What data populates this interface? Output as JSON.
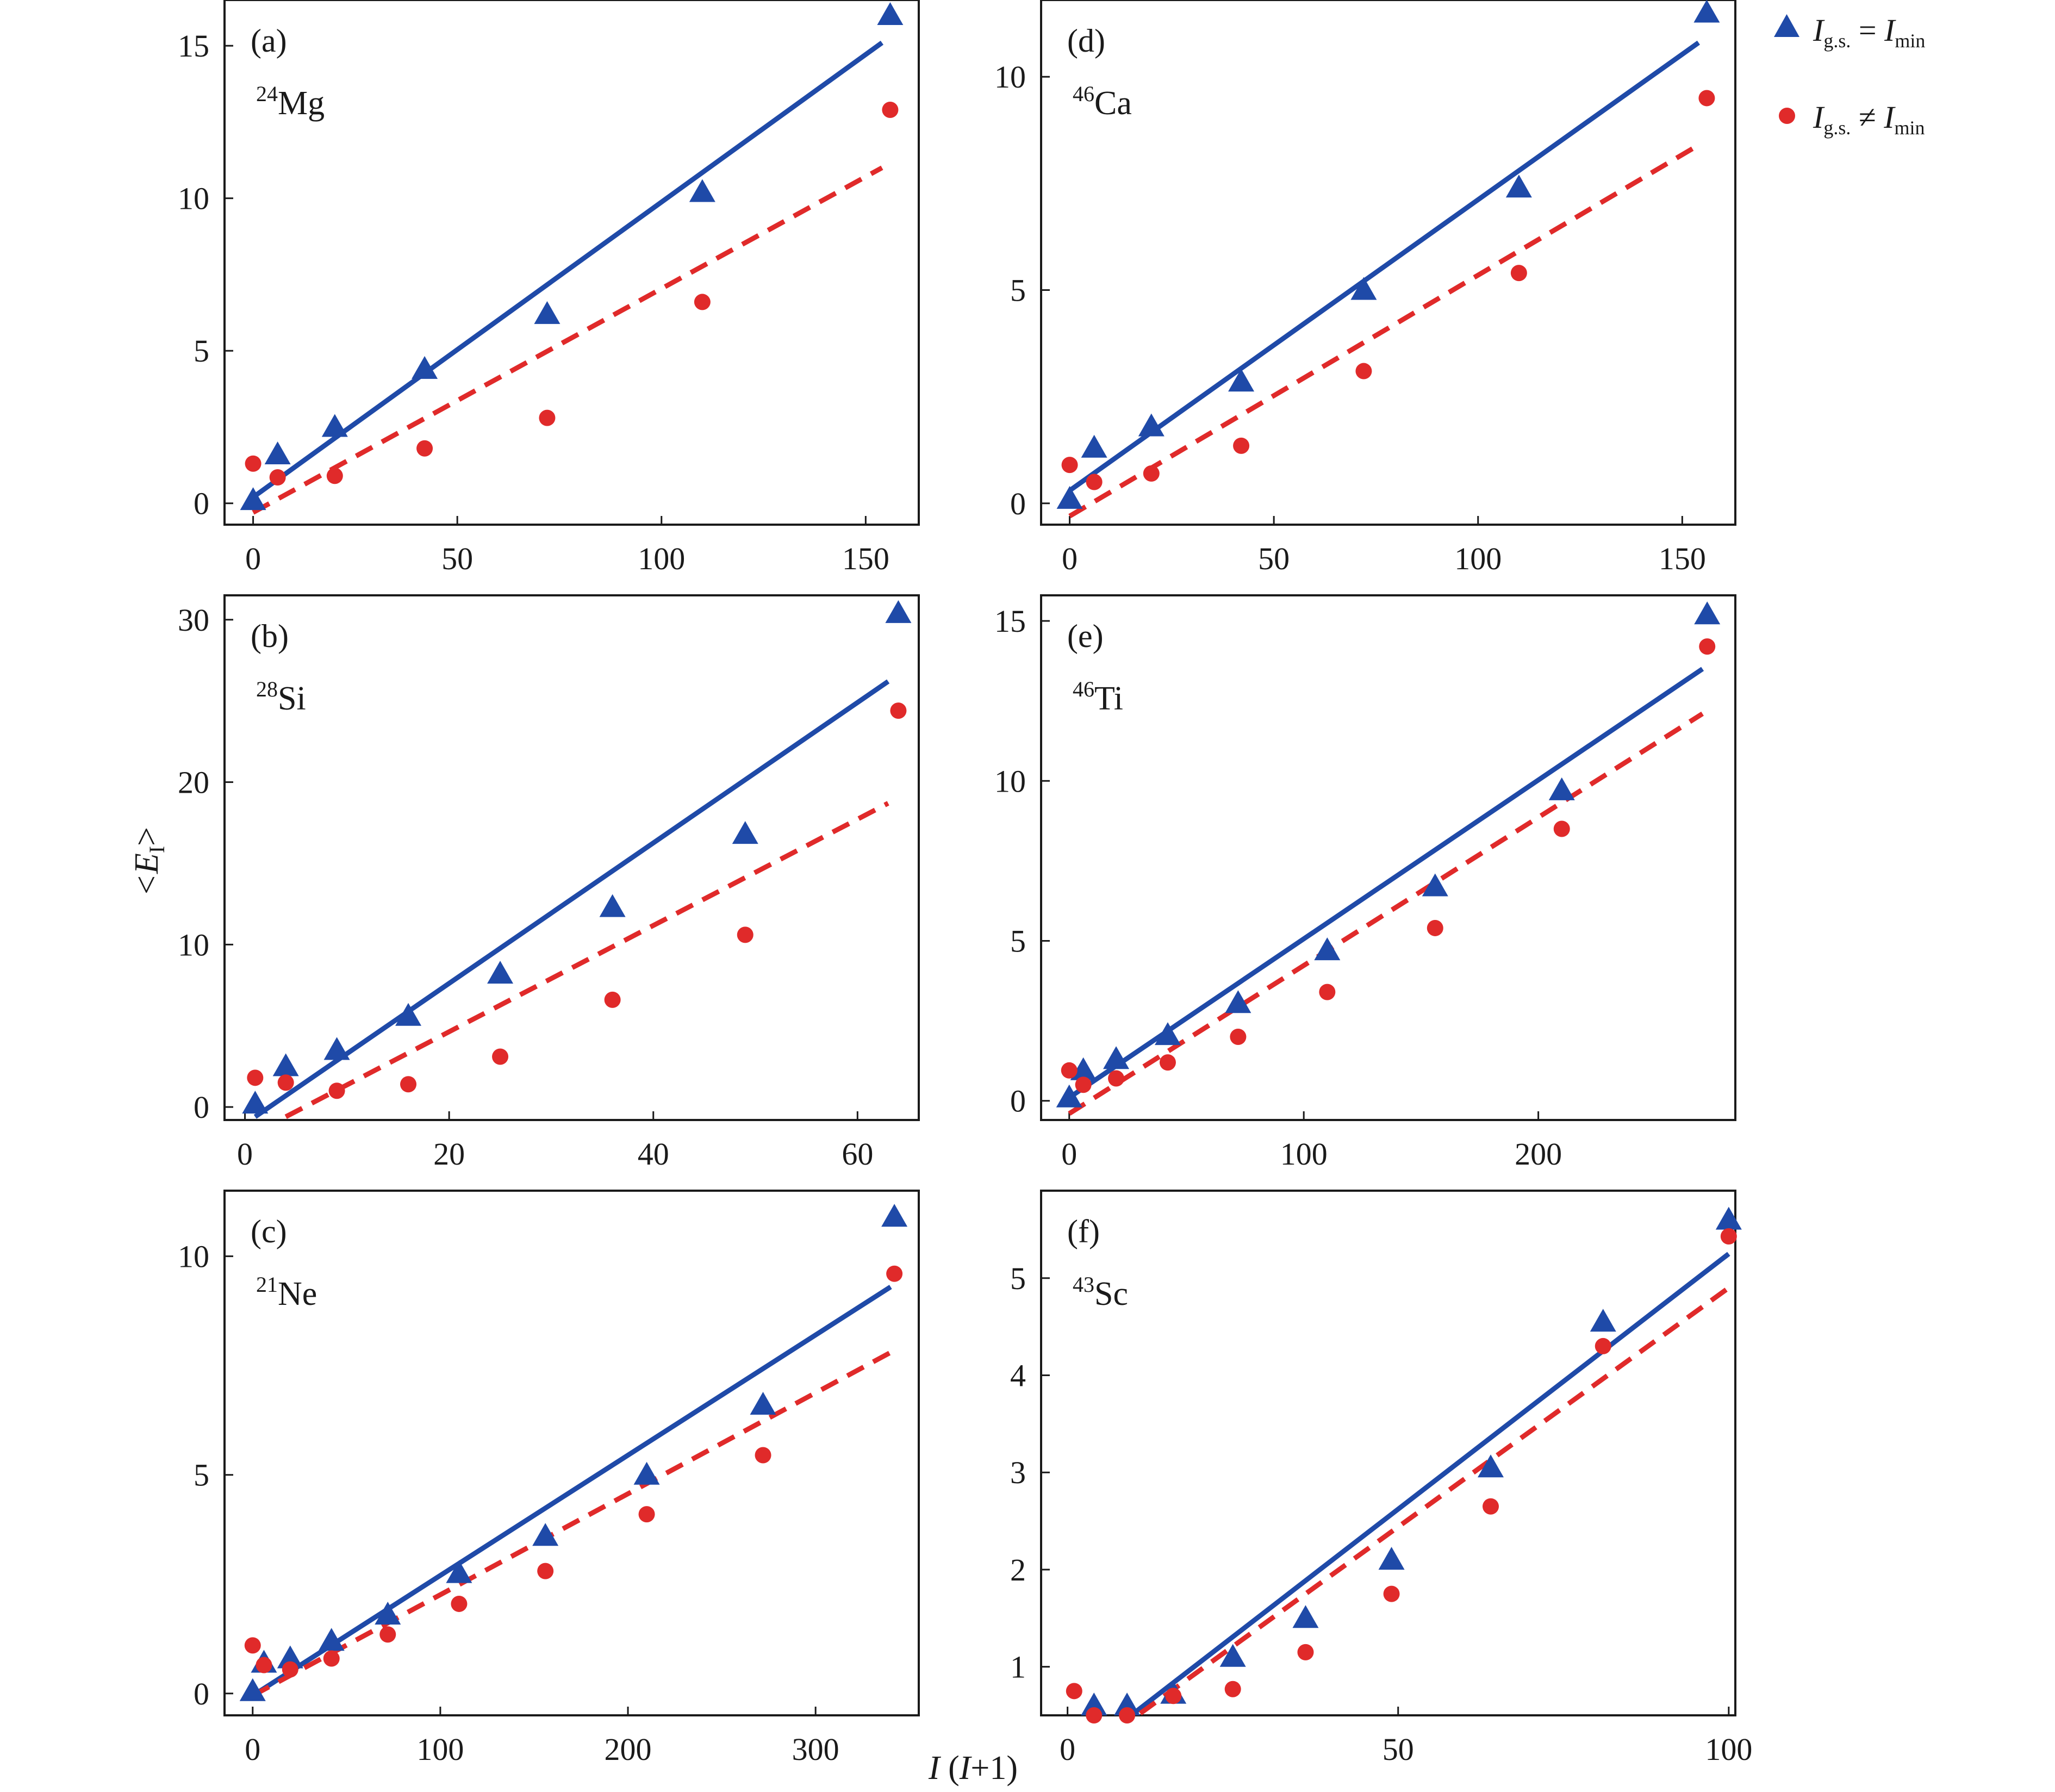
{
  "colors": {
    "series_min": "#1f4aa8",
    "series_not_min": "#e02a2a",
    "axes": "#1a1a1a",
    "background": "#ffffff"
  },
  "legend": {
    "entries": [
      {
        "marker": "triangle",
        "lhs": "I",
        "lhs_sub": "g.s.",
        "op": "=",
        "rhs": "I",
        "rhs_sub": "min"
      },
      {
        "marker": "circle",
        "lhs": "I",
        "lhs_sub": "g.s.",
        "op": "≠",
        "rhs": "I",
        "rhs_sub": "min"
      }
    ]
  },
  "axes_titles": {
    "y_main": "<E",
    "y_sub": "I",
    "y_end": ">",
    "x_italic": "I",
    "x_rest": " (",
    "x_italic2": "I",
    "x_end": "+1)"
  },
  "chart_data": [
    {
      "type": "scatter",
      "panel": "(a)",
      "nucleus_mass": "24",
      "nucleus_symbol": "Mg",
      "xlim": [
        -7,
        163
      ],
      "ylim": [
        -0.7,
        16.5
      ],
      "xticks": [
        0,
        50,
        100,
        150
      ],
      "yticks": [
        0,
        5,
        10,
        15
      ],
      "series": [
        {
          "marker": "triangle",
          "x": [
            0,
            6,
            20,
            42,
            72,
            110,
            156
          ],
          "y": [
            0.1,
            1.6,
            2.5,
            4.4,
            6.2,
            10.2,
            16.0
          ]
        },
        {
          "marker": "circle",
          "x": [
            0,
            6,
            20,
            42,
            72,
            110,
            156
          ],
          "y": [
            1.3,
            0.85,
            0.9,
            1.8,
            2.8,
            6.6,
            12.9
          ]
        }
      ],
      "fits": [
        {
          "style": "solid",
          "x": [
            0,
            154
          ],
          "y": [
            0.2,
            15.1
          ]
        },
        {
          "style": "dashed",
          "x": [
            0,
            154
          ],
          "y": [
            -0.3,
            11.0
          ]
        }
      ]
    },
    {
      "type": "scatter",
      "panel": "(b)",
      "nucleus_mass": "28",
      "nucleus_symbol": "Si",
      "xlim": [
        -2,
        66
      ],
      "ylim": [
        -0.8,
        31.5
      ],
      "xticks": [
        0,
        20,
        40,
        60
      ],
      "yticks": [
        0,
        10,
        20,
        30
      ],
      "series": [
        {
          "marker": "triangle",
          "x": [
            1,
            4,
            9,
            16,
            25,
            36,
            49,
            64
          ],
          "y": [
            0.2,
            2.5,
            3.5,
            5.6,
            8.2,
            12.3,
            16.8,
            30.4
          ]
        },
        {
          "marker": "circle",
          "x": [
            1,
            4,
            9,
            16,
            25,
            36,
            49,
            64
          ],
          "y": [
            1.8,
            1.5,
            1.0,
            1.4,
            3.1,
            6.6,
            10.6,
            24.4
          ]
        }
      ],
      "fits": [
        {
          "style": "solid",
          "x": [
            1,
            63
          ],
          "y": [
            -0.6,
            26.2
          ]
        },
        {
          "style": "dashed",
          "x": [
            4,
            63
          ],
          "y": [
            -0.6,
            18.7
          ]
        }
      ]
    },
    {
      "type": "scatter",
      "panel": "(c)",
      "nucleus_mass": "21",
      "nucleus_symbol": "Ne",
      "xlim": [
        -15,
        355
      ],
      "ylim": [
        -0.5,
        11.5
      ],
      "xticks": [
        0,
        100,
        200,
        300
      ],
      "yticks": [
        0,
        5,
        10
      ],
      "series": [
        {
          "marker": "triangle",
          "x": [
            0,
            6,
            20,
            42,
            72,
            110,
            156,
            210,
            272,
            342
          ],
          "y": [
            0.05,
            0.7,
            0.8,
            1.2,
            1.8,
            2.75,
            3.6,
            5.0,
            6.6,
            10.9
          ]
        },
        {
          "marker": "circle",
          "x": [
            0,
            6,
            20,
            42,
            72,
            110,
            156,
            210,
            272,
            342
          ],
          "y": [
            1.1,
            0.65,
            0.55,
            0.8,
            1.35,
            2.05,
            2.8,
            4.1,
            5.45,
            9.6
          ]
        }
      ],
      "fits": [
        {
          "style": "solid",
          "x": [
            0,
            340
          ],
          "y": [
            -0.05,
            9.3
          ]
        },
        {
          "style": "dashed",
          "x": [
            0,
            340
          ],
          "y": [
            -0.05,
            7.8
          ]
        }
      ]
    },
    {
      "type": "scatter",
      "panel": "(d)",
      "nucleus_mass": "46",
      "nucleus_symbol": "Ca",
      "xlim": [
        -7,
        163
      ],
      "ylim": [
        -0.5,
        11.8
      ],
      "xticks": [
        0,
        50,
        100,
        150
      ],
      "yticks": [
        0,
        5,
        10
      ],
      "series": [
        {
          "marker": "triangle",
          "x": [
            0,
            6,
            20,
            42,
            72,
            110,
            156
          ],
          "y": [
            0.1,
            1.3,
            1.8,
            2.85,
            5.0,
            7.4,
            11.5
          ]
        },
        {
          "marker": "circle",
          "x": [
            0,
            6,
            20,
            42,
            72,
            110,
            156
          ],
          "y": [
            0.9,
            0.5,
            0.7,
            1.35,
            3.1,
            5.4,
            9.5
          ]
        }
      ],
      "fits": [
        {
          "style": "solid",
          "x": [
            0,
            154
          ],
          "y": [
            0.3,
            10.8
          ]
        },
        {
          "style": "dashed",
          "x": [
            0,
            154
          ],
          "y": [
            -0.3,
            8.4
          ]
        }
      ]
    },
    {
      "type": "scatter",
      "panel": "(e)",
      "nucleus_mass": "46",
      "nucleus_symbol": "Ti",
      "xlim": [
        -12,
        284
      ],
      "ylim": [
        -0.6,
        15.8
      ],
      "xticks": [
        0,
        100,
        200
      ],
      "yticks": [
        0,
        5,
        10,
        15
      ],
      "series": [
        {
          "marker": "triangle",
          "x": [
            0,
            6,
            20,
            42,
            72,
            110,
            156,
            210,
            272
          ],
          "y": [
            0.1,
            0.95,
            1.3,
            2.05,
            3.05,
            4.7,
            6.7,
            9.7,
            15.2
          ]
        },
        {
          "marker": "circle",
          "x": [
            0,
            6,
            20,
            42,
            72,
            110,
            156,
            210,
            272
          ],
          "y": [
            0.95,
            0.5,
            0.7,
            1.2,
            2.0,
            3.4,
            5.4,
            8.5,
            14.2
          ]
        }
      ],
      "fits": [
        {
          "style": "solid",
          "x": [
            0,
            270
          ],
          "y": [
            0.1,
            13.5
          ]
        },
        {
          "style": "dashed",
          "x": [
            0,
            270
          ],
          "y": [
            -0.4,
            12.1
          ]
        }
      ]
    },
    {
      "type": "scatter",
      "panel": "(f)",
      "nucleus_mass": "43",
      "nucleus_symbol": "Sc",
      "xlim": [
        -4,
        101
      ],
      "ylim": [
        0.5,
        5.9
      ],
      "xticks": [
        0,
        50,
        100
      ],
      "yticks": [
        1,
        2,
        3,
        4,
        5
      ],
      "series": [
        {
          "marker": "triangle",
          "x": [
            4,
            9,
            16,
            25,
            36,
            49,
            64,
            81,
            100
          ],
          "y": [
            0.6,
            0.6,
            0.72,
            1.1,
            1.5,
            2.1,
            3.05,
            4.55,
            5.6
          ]
        },
        {
          "marker": "circle",
          "x": [
            1,
            4,
            9,
            16,
            25,
            36,
            49,
            64,
            81,
            100
          ],
          "y": [
            0.75,
            0.5,
            0.5,
            0.7,
            0.77,
            1.15,
            1.75,
            2.65,
            4.3,
            5.43
          ]
        }
      ],
      "fits": [
        {
          "style": "solid",
          "x": [
            10,
            100
          ],
          "y": [
            0.52,
            5.25
          ]
        },
        {
          "style": "dashed",
          "x": [
            11,
            100
          ],
          "y": [
            0.52,
            4.9
          ]
        }
      ]
    }
  ]
}
